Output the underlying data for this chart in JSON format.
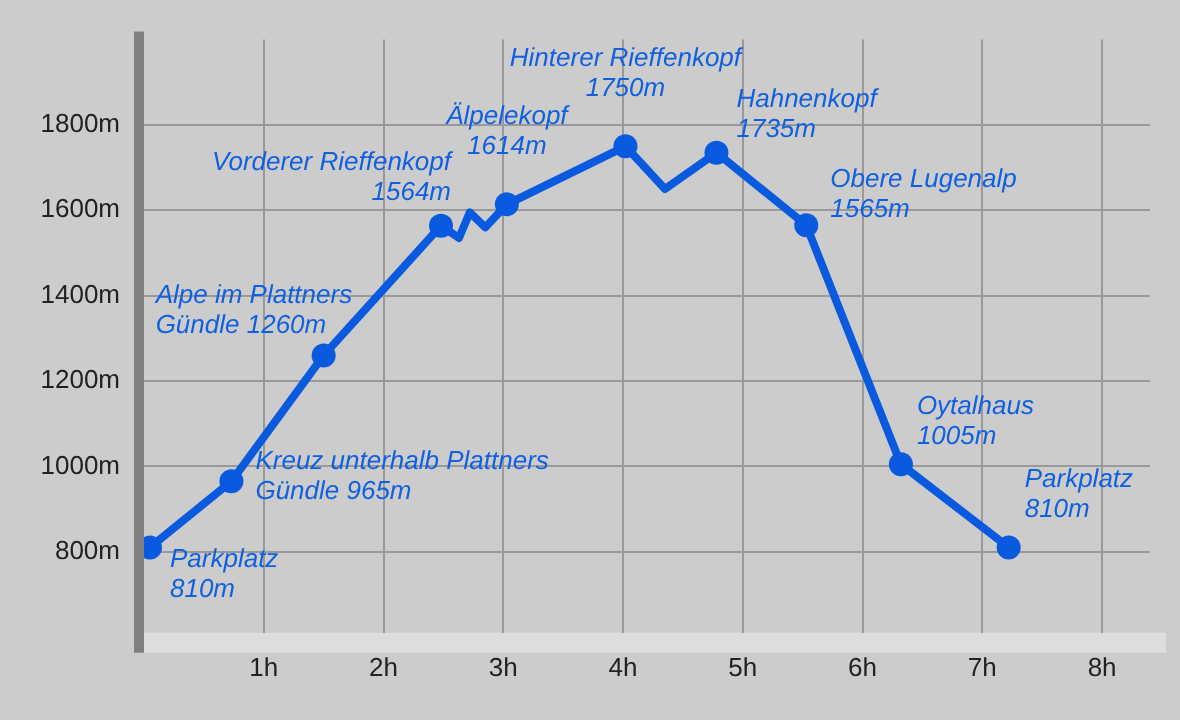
{
  "chart_data": {
    "type": "line",
    "x": [
      0.05,
      0.73,
      1.5,
      2.48,
      2.63,
      2.72,
      2.85,
      3.03,
      4.02,
      4.35,
      4.78,
      5.53,
      6.32,
      7.22
    ],
    "series": [
      {
        "color": "#0a5ae0",
        "values": [
          810,
          965,
          1260,
          1564,
          1535,
          1595,
          1560,
          1614,
          1750,
          1650,
          1735,
          1565,
          1005,
          810
        ]
      }
    ],
    "xlim": [
      0,
      8.4
    ],
    "ylim": [
      610,
      2000
    ],
    "xticks": [
      {
        "value": 1,
        "label": "1h"
      },
      {
        "value": 2,
        "label": "2h"
      },
      {
        "value": 3,
        "label": "3h"
      },
      {
        "value": 4,
        "label": "4h"
      },
      {
        "value": 5,
        "label": "5h"
      },
      {
        "value": 6,
        "label": "6h"
      },
      {
        "value": 7,
        "label": "7h"
      },
      {
        "value": 8,
        "label": "8h"
      }
    ],
    "yticks": [
      {
        "value": 800,
        "label": "800m"
      },
      {
        "value": 1000,
        "label": "1000m"
      },
      {
        "value": 1200,
        "label": "1200m"
      },
      {
        "value": 1400,
        "label": "1400m"
      },
      {
        "value": 1600,
        "label": "1600m"
      },
      {
        "value": 1800,
        "label": "1800m"
      }
    ],
    "grid": true,
    "marker": "circle",
    "line_style": "solid",
    "annotations": [
      {
        "text": "Parkplatz\n810m",
        "x": 0.05,
        "y": 810
      },
      {
        "text": "Kreuz unterhalb Plattners\nGündle 965m",
        "x": 0.73,
        "y": 965
      },
      {
        "text": "Alpe im Plattners\nGündle 1260m",
        "x": 1.5,
        "y": 1260
      },
      {
        "text": "Vorderer Rieffenkopf\n1564m",
        "x": 2.48,
        "y": 1564
      },
      {
        "text": "Älpelekopf\n1614m",
        "x": 3.03,
        "y": 1614
      },
      {
        "text": "Hinterer Rieffenkopf\n1750m",
        "x": 4.02,
        "y": 1750
      },
      {
        "text": "Hahnenkopf\n1735m",
        "x": 4.78,
        "y": 1735
      },
      {
        "text": "Obere Lugenalp\n1565m",
        "x": 5.53,
        "y": 1565
      },
      {
        "text": "Oytalhaus\n1005m",
        "x": 6.32,
        "y": 1005
      },
      {
        "text": "Parkplatz\n810m",
        "x": 7.22,
        "y": 810
      }
    ]
  }
}
